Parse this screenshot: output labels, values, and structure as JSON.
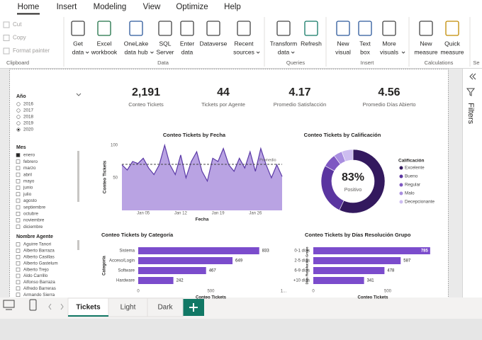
{
  "ribbon": {
    "tabs": [
      "Home",
      "Insert",
      "Modeling",
      "View",
      "Optimize",
      "Help"
    ],
    "groups": [
      {
        "label": "Clipboard",
        "buttons": [
          {
            "lines": [
              "Cut"
            ]
          },
          {
            "lines": [
              "Copy"
            ]
          },
          {
            "lines": [
              "Format painter"
            ]
          }
        ]
      },
      {
        "label": "Data",
        "buttons": [
          {
            "lines": [
              "Get",
              "data"
            ],
            "menu": true
          },
          {
            "lines": [
              "Excel",
              "workbook"
            ]
          },
          {
            "lines": [
              "OneLake",
              "data hub"
            ],
            "menu": true
          },
          {
            "lines": [
              "SQL",
              "Server"
            ]
          },
          {
            "lines": [
              "Enter",
              "data"
            ]
          },
          {
            "lines": [
              "Dataverse"
            ]
          },
          {
            "lines": [
              "Recent",
              "sources"
            ],
            "menu": true
          }
        ]
      },
      {
        "label": "Queries",
        "buttons": [
          {
            "lines": [
              "Transform",
              "data"
            ],
            "menu": true
          },
          {
            "lines": [
              "Refresh"
            ]
          }
        ]
      },
      {
        "label": "Insert",
        "buttons": [
          {
            "lines": [
              "New",
              "visual"
            ]
          },
          {
            "lines": [
              "Text",
              "box"
            ]
          },
          {
            "lines": [
              "More",
              "visuals"
            ],
            "menu": true
          }
        ]
      },
      {
        "label": "Calculations",
        "buttons": [
          {
            "lines": [
              "New",
              "measure"
            ]
          },
          {
            "lines": [
              "Quick",
              "measure"
            ]
          }
        ]
      },
      {
        "label": "Se",
        "buttons": []
      }
    ]
  },
  "slicers": [
    {
      "title": "Año",
      "items": [
        "2016",
        "2017",
        "2018",
        "2019",
        "2020"
      ],
      "selected": 4
    },
    {
      "title": "Mes",
      "items": [
        "enero",
        "febrero",
        "marzo",
        "abril",
        "mayo",
        "junio",
        "julio",
        "agosto",
        "septiembre",
        "octubre",
        "noviembre",
        "diciembre"
      ],
      "selected": 0
    },
    {
      "title": "Nombre Agente",
      "items": [
        "Aguirre Tanori",
        "Alberto Barraza",
        "Alberto Casillas",
        "Alberto Gastelum",
        "Alberto Trejo",
        "Aldo Carrillo",
        "Alfonso Barraza",
        "Alfredo Barreras",
        "Armando Sierra"
      ]
    }
  ],
  "cards": [
    {
      "value": "2,191",
      "label": "Conteo Tickets"
    },
    {
      "value": "44",
      "label": "Tickets por Agente"
    },
    {
      "value": "4.17",
      "label": "Promedio Satisfacción"
    },
    {
      "value": "4.56",
      "label": "Promedio Días Abierto"
    }
  ],
  "visuals": [
    {
      "type": "area",
      "title": "Conteo Tickets by Fecha",
      "x_label": "Fecha",
      "y_label": "Conteo Tickets",
      "color": "#b9a3e3",
      "line_color": "#5b3aa6",
      "x": [
        1,
        2,
        3,
        4,
        5,
        6,
        7,
        8,
        9,
        10,
        11,
        12,
        13,
        14,
        15,
        16,
        17,
        18,
        19,
        20,
        21,
        22,
        23,
        24,
        25,
        26,
        27,
        28,
        29,
        30,
        31
      ],
      "values": [
        70,
        62,
        75,
        72,
        80,
        65,
        55,
        70,
        100,
        70,
        55,
        85,
        50,
        75,
        90,
        60,
        45,
        80,
        75,
        95,
        70,
        60,
        80,
        65,
        90,
        60,
        95,
        70,
        50,
        70,
        52
      ],
      "xlim": [
        1,
        31
      ],
      "xticks": [
        {
          "value": 5,
          "label": "Jan 05"
        },
        {
          "value": 12,
          "label": "Jan 12"
        },
        {
          "value": 19,
          "label": "Jan 19"
        },
        {
          "value": 26,
          "label": "Jan 26"
        }
      ],
      "ylim": [
        0,
        100
      ],
      "yticks": [
        50,
        100
      ],
      "reference": {
        "label": "Promedio",
        "value": 70.68
      }
    },
    {
      "type": "donut",
      "title": "Conteo Tickets by Calificación",
      "legend_title": "Calificación",
      "center_value": "83%",
      "center_label": "Positivo",
      "categories": [
        "Excelente",
        "Bueno",
        "Regular",
        "Malo",
        "Decepcionante"
      ],
      "values": [
        1250,
        570,
        150,
        95,
        126
      ],
      "colors": [
        "#33195e",
        "#5a35a0",
        "#7e57c2",
        "#a98ee0",
        "#cdbdf0"
      ]
    },
    {
      "type": "hbar",
      "title": "Conteo Tickets by Categoría",
      "x_label": "Conteo Tickets",
      "y_label": "Categoría",
      "color": "#7b4ccc",
      "categories": [
        "Sistema",
        "Acceso/Login",
        "Software",
        "Hardware"
      ],
      "values": [
        833,
        649,
        467,
        242
      ],
      "xlim": [
        0,
        1000
      ],
      "xticks": [
        0,
        500,
        {
          "value": 1000,
          "label": "1..."
        }
      ]
    },
    {
      "type": "hbar",
      "title": "Conteo Tickets by Días Resolución Grupo",
      "x_label": "Conteo Tickets",
      "y_label": "Días Resolución Grupo",
      "color": "#7b4ccc",
      "categories": [
        "0-1 días",
        "2-5 días",
        "6-9 días",
        "+10 días"
      ],
      "values": [
        785,
        587,
        478,
        341
      ],
      "xlim": [
        0,
        800
      ],
      "xticks": [
        0,
        500
      ]
    }
  ],
  "filters_pane": {
    "title": "Filters"
  },
  "page_tabs": [
    "Tickets",
    "Light",
    "Dark"
  ]
}
